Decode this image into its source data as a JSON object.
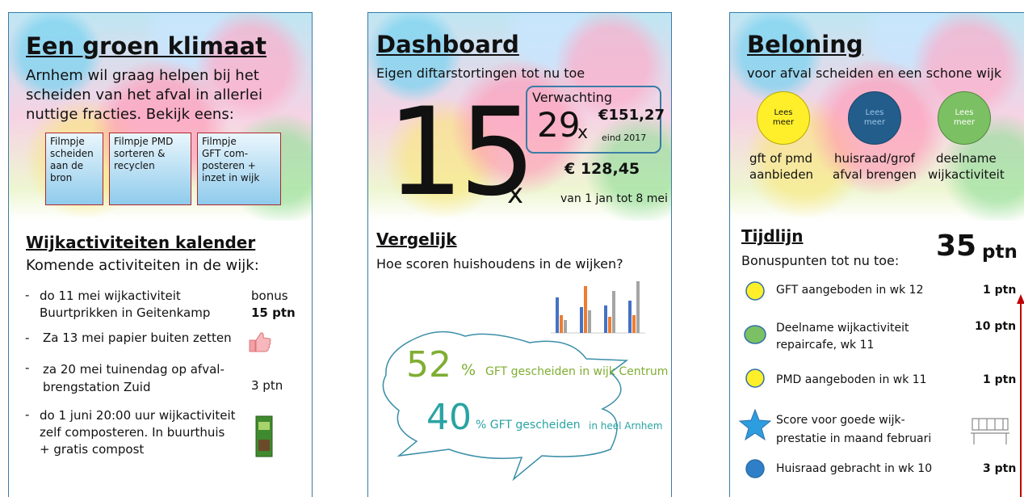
{
  "left": {
    "title": "Een groen klimaat",
    "intro": [
      "Arnhem wil graag helpen bij het",
      "scheiden van het afval in allerlei",
      "nuttige fracties. Bekijk eens:"
    ],
    "videos": [
      [
        "Filmpje",
        "scheiden",
        "aan de bron"
      ],
      [
        "Filmpje PMD",
        "sorteren &",
        "recyclen"
      ],
      [
        "Filmpje",
        "GFT com-",
        "posteren +",
        "inzet in wijk"
      ]
    ],
    "section_title": "Wijkactiviteiten kalender",
    "section_subtitle": "Komende  activiteiten in de wijk:",
    "activities": [
      {
        "lines": [
          "do 11 mei wijkactiviteit",
          "Buurtprikken in Geitenkamp"
        ],
        "bonus": "bonus",
        "points": "15 ptn"
      },
      {
        "lines": [
          "Za 13 mei papier buiten zetten"
        ]
      },
      {
        "lines": [
          "za 20 mei tuinendag op afval-",
          "brengstation Zuid"
        ],
        "points": "3 ptn"
      },
      {
        "lines": [
          "do 1 juni 20:00 uur wijkactiviteit",
          "zelf composteren. In buurthuis",
          "+ gratis compost"
        ]
      }
    ]
  },
  "middle": {
    "title": "Dashboard",
    "subtitle": "Eigen diftarstortingen tot nu toe",
    "count": 15,
    "count_unit": "x",
    "amount": "€ 128,45",
    "period": "van 1 jan tot 8 mei",
    "forecast": {
      "label": "Verwachting",
      "count": 29,
      "count_unit": "x",
      "amount": "€151,27",
      "period": "eind 2017"
    },
    "section_title": "Vergelijk",
    "section_subtitle": "Hoe scoren huishoudens in de wijken?",
    "stats": [
      {
        "value": 52,
        "unit": "%",
        "text": "GFT gescheiden in wijk Centrum"
      },
      {
        "value": 40,
        "unit": "% GFT gescheiden",
        "text": "in heel Arnhem"
      }
    ]
  },
  "right": {
    "title": "Beloning",
    "subtitle": "voor afval scheiden en een schone wijk",
    "rewards": [
      {
        "button": [
          "Lees",
          "meer"
        ],
        "label": [
          "gft of pmd",
          "aanbieden"
        ]
      },
      {
        "button": [
          "Lees",
          "meer"
        ],
        "label": [
          "huisraad/grof",
          "afval brengen"
        ]
      },
      {
        "button": [
          "Lees",
          "meer"
        ],
        "label": [
          "deelname",
          "wijkactiviteit"
        ]
      }
    ],
    "section_title": "Tijdlijn",
    "section_subtitle": "Bonuspunten tot nu toe:",
    "total": 35,
    "total_unit": "ptn",
    "timeline": [
      {
        "lines": [
          "GFT aangeboden in wk 12"
        ],
        "points": "1 ptn"
      },
      {
        "lines": [
          "Deelname wijkactiviteit",
          "repaircafe, wk 11"
        ],
        "points": "10 ptn"
      },
      {
        "lines": [
          "PMD aangeboden in wk 11"
        ],
        "points": "1 ptn"
      },
      {
        "lines": [
          "Score voor goede wijk-",
          "prestatie in maand februari"
        ]
      },
      {
        "lines": [
          "Huisraad gebracht in wk 10"
        ],
        "points": "3 ptn"
      }
    ]
  }
}
